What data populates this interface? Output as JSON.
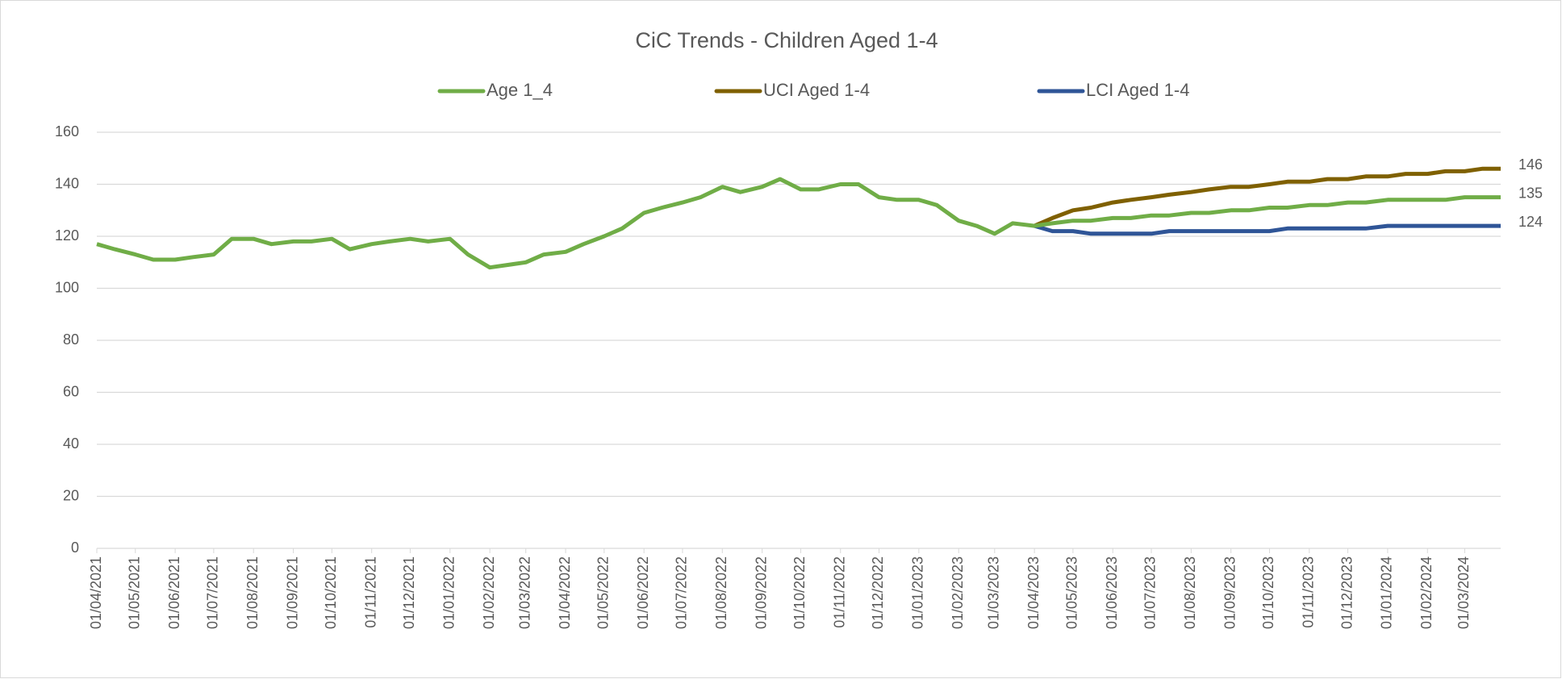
{
  "chart_data": {
    "type": "line",
    "title": "CiC Trends - Children Aged 1-4",
    "x": [
      "01/04/2021",
      "15/04/2021",
      "01/05/2021",
      "15/05/2021",
      "01/06/2021",
      "15/06/2021",
      "01/07/2021",
      "15/07/2021",
      "01/08/2021",
      "15/08/2021",
      "01/09/2021",
      "15/09/2021",
      "01/10/2021",
      "15/10/2021",
      "01/11/2021",
      "15/11/2021",
      "01/12/2021",
      "15/12/2021",
      "01/01/2022",
      "15/01/2022",
      "01/02/2022",
      "15/02/2022",
      "01/03/2022",
      "15/03/2022",
      "01/04/2022",
      "15/04/2022",
      "01/05/2022",
      "15/05/2022",
      "01/06/2022",
      "15/06/2022",
      "01/07/2022",
      "15/07/2022",
      "01/08/2022",
      "15/08/2022",
      "01/09/2022",
      "15/09/2022",
      "01/10/2022",
      "15/10/2022",
      "01/11/2022",
      "15/11/2022",
      "01/12/2022",
      "15/12/2022",
      "01/01/2023",
      "15/01/2023",
      "01/02/2023",
      "15/02/2023",
      "01/03/2023",
      "15/03/2023",
      "01/04/2023",
      "15/04/2023",
      "01/05/2023",
      "15/05/2023",
      "01/06/2023",
      "15/06/2023",
      "01/07/2023",
      "15/07/2023",
      "01/08/2023",
      "15/08/2023",
      "01/09/2023",
      "15/09/2023",
      "01/10/2023",
      "15/10/2023",
      "01/11/2023",
      "15/11/2023",
      "01/12/2023",
      "15/12/2023",
      "01/01/2024",
      "15/01/2024",
      "01/02/2024",
      "15/02/2024",
      "01/03/2024",
      "15/03/2024",
      "29/03/2024"
    ],
    "series": [
      {
        "name": "Age 1_4",
        "color": "#70ad47",
        "values": [
          117,
          115,
          113,
          111,
          111,
          112,
          113,
          119,
          119,
          117,
          118,
          118,
          119,
          115,
          117,
          118,
          119,
          118,
          119,
          113,
          108,
          109,
          110,
          113,
          114,
          117,
          120,
          123,
          129,
          131,
          133,
          135,
          139,
          137,
          139,
          142,
          138,
          138,
          140,
          140,
          135,
          134,
          134,
          132,
          126,
          124,
          121,
          125,
          124,
          125,
          126,
          126,
          127,
          127,
          128,
          128,
          129,
          129,
          130,
          130,
          131,
          131,
          132,
          132,
          133,
          133,
          134,
          134,
          134,
          134,
          135,
          135,
          135
        ]
      },
      {
        "name": "UCI Aged 1-4",
        "color": "#7f6000",
        "values": [
          null,
          null,
          null,
          null,
          null,
          null,
          null,
          null,
          null,
          null,
          null,
          null,
          null,
          null,
          null,
          null,
          null,
          null,
          null,
          null,
          null,
          null,
          null,
          null,
          null,
          null,
          null,
          null,
          null,
          null,
          null,
          null,
          null,
          null,
          null,
          null,
          null,
          null,
          null,
          null,
          null,
          null,
          null,
          null,
          null,
          null,
          null,
          null,
          124,
          127,
          130,
          131,
          133,
          134,
          135,
          136,
          137,
          138,
          139,
          139,
          140,
          141,
          141,
          142,
          142,
          143,
          143,
          144,
          144,
          145,
          145,
          146,
          146
        ]
      },
      {
        "name": "LCI Aged 1-4",
        "color": "#2f5597",
        "values": [
          null,
          null,
          null,
          null,
          null,
          null,
          null,
          null,
          null,
          null,
          null,
          null,
          null,
          null,
          null,
          null,
          null,
          null,
          null,
          null,
          null,
          null,
          null,
          null,
          null,
          null,
          null,
          null,
          null,
          null,
          null,
          null,
          null,
          null,
          null,
          null,
          null,
          null,
          null,
          null,
          null,
          null,
          null,
          null,
          null,
          null,
          null,
          null,
          124,
          122,
          122,
          121,
          121,
          121,
          121,
          122,
          122,
          122,
          122,
          122,
          122,
          123,
          123,
          123,
          123,
          123,
          124,
          124,
          124,
          124,
          124,
          124,
          124
        ]
      }
    ],
    "xlim": [
      "01/04/2021",
      "29/03/2024"
    ],
    "xticks": [
      "01/04/2021",
      "01/05/2021",
      "01/06/2021",
      "01/07/2021",
      "01/08/2021",
      "01/09/2021",
      "01/10/2021",
      "01/11/2021",
      "01/12/2021",
      "01/01/2022",
      "01/02/2022",
      "01/03/2022",
      "01/04/2022",
      "01/05/2022",
      "01/06/2022",
      "01/07/2022",
      "01/08/2022",
      "01/09/2022",
      "01/10/2022",
      "01/11/2022",
      "01/12/2022",
      "01/01/2023",
      "01/02/2023",
      "01/03/2023",
      "01/04/2023",
      "01/05/2023",
      "01/06/2023",
      "01/07/2023",
      "01/08/2023",
      "01/09/2023",
      "01/10/2023",
      "01/11/2023",
      "01/12/2023",
      "01/01/2024",
      "01/02/2024",
      "01/03/2024"
    ],
    "ylim": [
      0,
      160
    ],
    "yticks": [
      0,
      20,
      40,
      60,
      80,
      100,
      120,
      140,
      160
    ],
    "grid": true,
    "legend": "top"
  }
}
